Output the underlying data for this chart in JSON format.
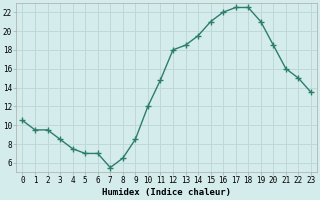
{
  "x": [
    0,
    1,
    2,
    3,
    4,
    5,
    6,
    7,
    8,
    9,
    10,
    11,
    12,
    13,
    14,
    15,
    16,
    17,
    18,
    19,
    20,
    21,
    22,
    23
  ],
  "y": [
    10.5,
    9.5,
    9.5,
    8.5,
    7.5,
    7.0,
    7.0,
    5.5,
    6.5,
    8.5,
    12.0,
    14.8,
    18.0,
    18.5,
    19.5,
    21.0,
    22.0,
    22.5,
    22.5,
    21.0,
    18.5,
    16.0,
    15.0,
    13.5
  ],
  "xlabel": "Humidex (Indice chaleur)",
  "line_color": "#2d7d6d",
  "marker_color": "#2d7d6d",
  "bg_color": "#d4ecec",
  "grid_color": "#c0d8d8",
  "xlim": [
    -0.5,
    23.5
  ],
  "ylim": [
    5.0,
    23.0
  ],
  "yticks": [
    6,
    8,
    10,
    12,
    14,
    16,
    18,
    20,
    22
  ],
  "xticks": [
    0,
    1,
    2,
    3,
    4,
    5,
    6,
    7,
    8,
    9,
    10,
    11,
    12,
    13,
    14,
    15,
    16,
    17,
    18,
    19,
    20,
    21,
    22,
    23
  ],
  "xlabel_fontsize": 6.5,
  "tick_fontsize": 5.5
}
